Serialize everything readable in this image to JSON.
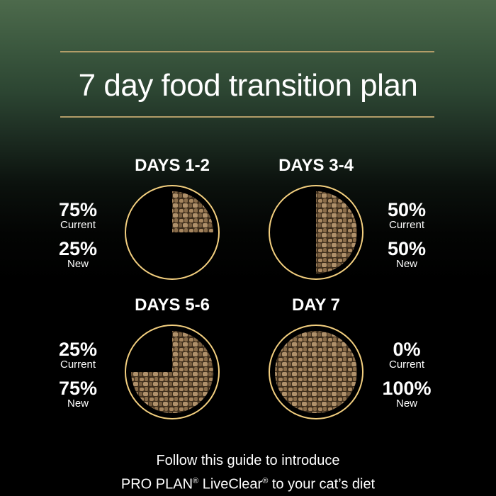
{
  "title": "7 day food transition plan",
  "accent_color": "#f3cf7f",
  "kibble_color": "#8a6d4a",
  "stages": [
    {
      "label": "DAYS 1-2",
      "current": "75%",
      "current_label": "Current",
      "new": "25%",
      "new_label": "New",
      "new_fraction": 0.25,
      "side": "left"
    },
    {
      "label": "DAYS 3-4",
      "current": "50%",
      "current_label": "Current",
      "new": "50%",
      "new_label": "New",
      "new_fraction": 0.5,
      "side": "right"
    },
    {
      "label": "DAYS 5-6",
      "current": "25%",
      "current_label": "Current",
      "new": "75%",
      "new_label": "New",
      "new_fraction": 0.75,
      "side": "left"
    },
    {
      "label": "DAY 7",
      "current": "0%",
      "current_label": "Current",
      "new": "100%",
      "new_label": "New",
      "new_fraction": 1.0,
      "side": "right"
    }
  ],
  "footer": {
    "line1": "Follow this guide to introduce",
    "line2_a": "PRO PLAN",
    "reg": "®",
    "line2_b": " LiveClear",
    "line2_c": " to your cat’s diet"
  }
}
